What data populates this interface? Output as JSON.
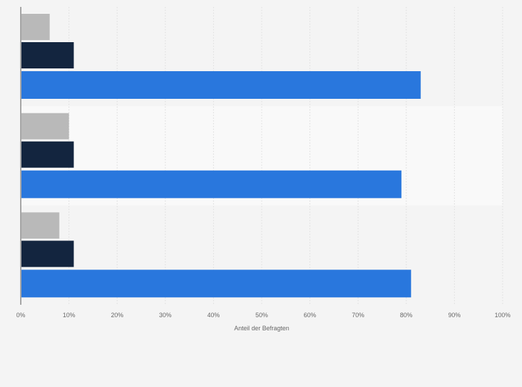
{
  "chart_data": {
    "type": "bar",
    "orientation": "horizontal",
    "title": "",
    "xlabel": "Anteil der Befragten",
    "ylabel": "",
    "xlim": [
      0,
      100
    ],
    "x_ticks": [
      "0%",
      "10%",
      "20%",
      "30%",
      "40%",
      "50%",
      "60%",
      "70%",
      "80%",
      "90%",
      "100%"
    ],
    "grid": true,
    "legend": "none",
    "categories": [
      "",
      "",
      ""
    ],
    "series": [
      {
        "color": "#b9b9b9",
        "values": [
          6,
          10,
          8
        ]
      },
      {
        "color": "#13253f",
        "values": [
          11,
          11,
          11
        ]
      },
      {
        "color": "#2977dd",
        "values": [
          83,
          79,
          81
        ]
      }
    ],
    "colors": {
      "background": "#f4f4f4",
      "band_highlight": "#f9f9f9",
      "grid": "#e2e2e2",
      "axis": "#555555"
    }
  }
}
